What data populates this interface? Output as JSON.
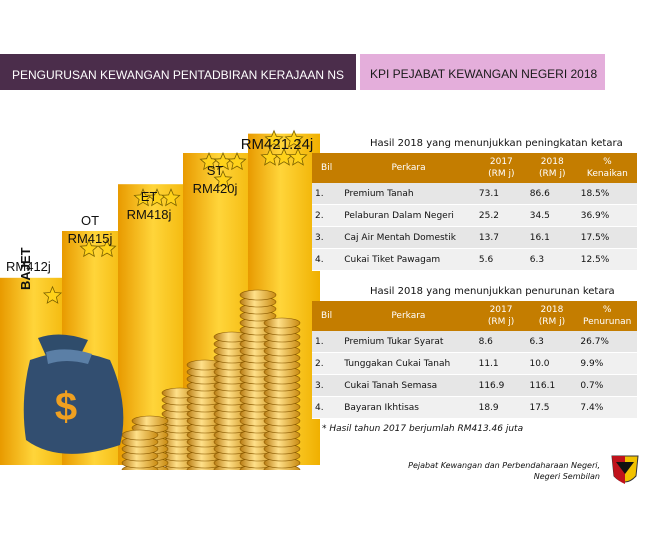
{
  "header": {
    "left_title": "PENGURUSAN KEWANGAN PENTADBIRAN KERAJAAN NS",
    "right_title": "KPI PEJABAT KEWANGAN NEGERI 2018"
  },
  "colors": {
    "header_left": "#4b2d4b",
    "header_right": "#e4aedb",
    "table_header": "#c47d00",
    "bar_gold": "#f0b000"
  },
  "chart_data": {
    "type": "bar",
    "categories": [
      "BAJET",
      "OT",
      "ET",
      "ST",
      ""
    ],
    "values": [
      412,
      415,
      418,
      420,
      421.24
    ],
    "stars": [
      1,
      2,
      3,
      4,
      5
    ],
    "labels": [
      "RM412j",
      "OT\nRM415j",
      "ET\nRM418j",
      "ST\nRM420j",
      "RM421.24j"
    ],
    "ylabel": "BAJET"
  },
  "table_up": {
    "title": "Hasil 2018 yang menunjukkan peningkatan ketara",
    "headers": [
      "Bil",
      "Perkara",
      "2017\n(RM j)",
      "2018\n(RM j)",
      "%\nKenaikan"
    ],
    "rows": [
      [
        "1.",
        "Premium Tanah",
        "73.1",
        "86.6",
        "18.5%"
      ],
      [
        "2.",
        "Pelaburan Dalam Negeri",
        "25.2",
        "34.5",
        "36.9%"
      ],
      [
        "3.",
        "Caj Air Mentah Domestik",
        "13.7",
        "16.1",
        "17.5%"
      ],
      [
        "4.",
        "Cukai Tiket Pawagam",
        "5.6",
        "6.3",
        "12.5%"
      ]
    ]
  },
  "table_down": {
    "title": "Hasil 2018 yang menunjukkan penurunan ketara",
    "headers": [
      "Bil",
      "Perkara",
      "2017\n(RM j)",
      "2018\n(RM j)",
      "%\nPenurunan"
    ],
    "rows": [
      [
        "1.",
        "Premium Tukar Syarat",
        "8.6",
        "6.3",
        "26.7%"
      ],
      [
        "2.",
        "Tunggakan Cukai Tanah",
        "11.1",
        "10.0",
        "9.9%"
      ],
      [
        "3.",
        "Cukai Tanah Semasa",
        "116.9",
        "116.1",
        "0.7%"
      ],
      [
        "4.",
        "Bayaran Ikhtisas",
        "18.9",
        "17.5",
        "7.4%"
      ]
    ]
  },
  "note": "* Hasil tahun 2017 berjumlah RM413.46 juta",
  "footer": {
    "line1": "Pejabat Kewangan dan Perbendaharaan Negeri,",
    "line2": "Negeri Sembilan"
  },
  "icons": {
    "money_bag": "money-bag-icon",
    "coins": "coin-stack-icon",
    "star": "star-icon",
    "crest": "state-crest-icon"
  }
}
